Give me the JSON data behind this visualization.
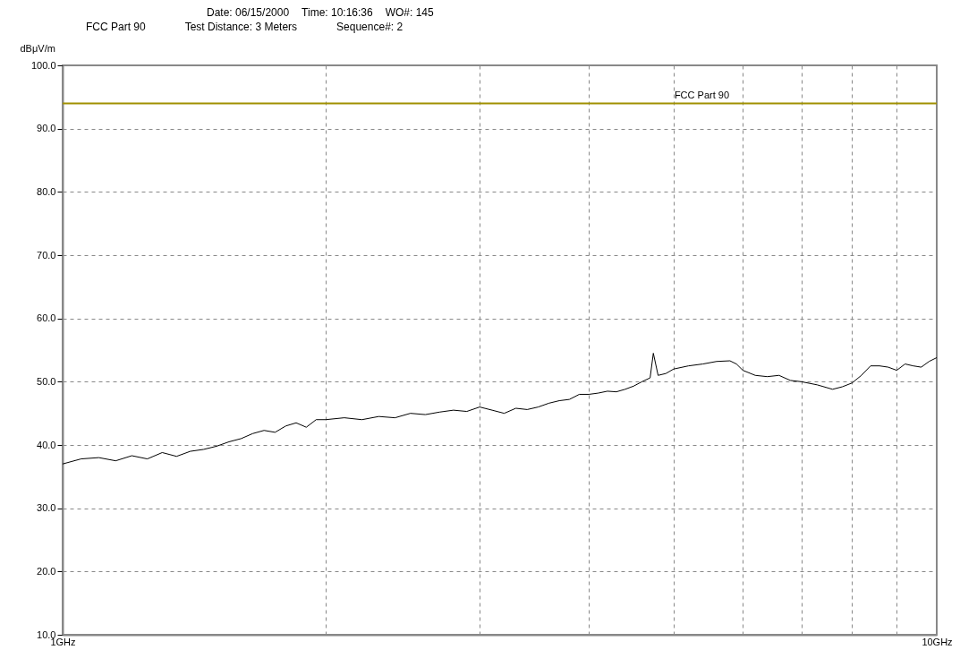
{
  "chart_data": {
    "type": "line",
    "ylabel": "dBμV/m",
    "annotations": [
      "Date: 06/15/2000",
      "Time: 10:16:36",
      "WO#: 145",
      "FCC Part 90",
      "Test Distance: 3 Meters",
      "Sequence#: 2"
    ],
    "series": [
      {
        "color": "#000000",
        "x": [
          1.0,
          1.05,
          1.1,
          1.15,
          1.2,
          1.25,
          1.3,
          1.35,
          1.4,
          1.45,
          1.5,
          1.55,
          1.6,
          1.65,
          1.7,
          1.75,
          1.8,
          1.85,
          1.9,
          1.95,
          2.0,
          2.1,
          2.2,
          2.3,
          2.4,
          2.5,
          2.6,
          2.7,
          2.8,
          2.9,
          3.0,
          3.1,
          3.2,
          3.3,
          3.4,
          3.5,
          3.6,
          3.7,
          3.8,
          3.9,
          4.0,
          4.1,
          4.2,
          4.3,
          4.4,
          4.5,
          4.6,
          4.7,
          4.74,
          4.8,
          4.9,
          5.0,
          5.2,
          5.4,
          5.6,
          5.8,
          5.9,
          6.0,
          6.2,
          6.4,
          6.6,
          6.8,
          7.0,
          7.3,
          7.6,
          7.8,
          8.0,
          8.2,
          8.4,
          8.6,
          8.8,
          9.0,
          9.2,
          9.4,
          9.6,
          9.8,
          10.0
        ],
        "values": [
          37.0,
          37.8,
          38.0,
          37.5,
          38.3,
          37.8,
          38.8,
          38.2,
          39.0,
          39.3,
          39.8,
          40.5,
          41.0,
          41.8,
          42.3,
          42.0,
          43.0,
          43.5,
          42.8,
          44.0,
          44.0,
          44.3,
          44.0,
          44.5,
          44.3,
          45.0,
          44.8,
          45.2,
          45.5,
          45.3,
          46.0,
          45.5,
          45.0,
          45.8,
          45.6,
          46.0,
          46.6,
          47.0,
          47.2,
          48.0,
          48.0,
          48.2,
          48.5,
          48.4,
          48.8,
          49.3,
          50.0,
          50.6,
          54.5,
          51.0,
          51.3,
          52.0,
          52.5,
          52.8,
          53.2,
          53.3,
          52.8,
          51.8,
          51.0,
          50.8,
          51.0,
          50.2,
          50.0,
          49.5,
          48.8,
          49.2,
          49.8,
          51.0,
          52.5,
          52.5,
          52.3,
          51.8,
          52.8,
          52.5,
          52.3,
          53.2,
          53.8
        ]
      }
    ],
    "log": "x",
    "xlim": [
      1,
      10
    ],
    "xticks": [
      {
        "value": 1,
        "label": "1GHz"
      },
      {
        "value": 2,
        "label": null
      },
      {
        "value": 3,
        "label": null
      },
      {
        "value": 4,
        "label": null
      },
      {
        "value": 5,
        "label": null
      },
      {
        "value": 6,
        "label": null
      },
      {
        "value": 7,
        "label": null
      },
      {
        "value": 8,
        "label": null
      },
      {
        "value": 9,
        "label": null
      },
      {
        "value": 10,
        "label": "10GHz"
      }
    ],
    "ylim": [
      10,
      100
    ],
    "yticks": [
      {
        "value": 10,
        "label": "10.0"
      },
      {
        "value": 20,
        "label": "20.0"
      },
      {
        "value": 30,
        "label": "30.0"
      },
      {
        "value": 40,
        "label": "40.0"
      },
      {
        "value": 50,
        "label": "50.0"
      },
      {
        "value": 60,
        "label": "60.0"
      },
      {
        "value": 70,
        "label": "70.0"
      },
      {
        "value": 80,
        "label": "80.0"
      },
      {
        "value": 90,
        "label": "90.0"
      },
      {
        "value": 100,
        "label": "100.0"
      }
    ],
    "ref_lines": [
      {
        "axis": "y",
        "value": 94,
        "label": "FCC Part 90",
        "color": "#a09000"
      }
    ],
    "grid": true,
    "legend": false,
    "line_style": "solid",
    "marker": "none"
  }
}
